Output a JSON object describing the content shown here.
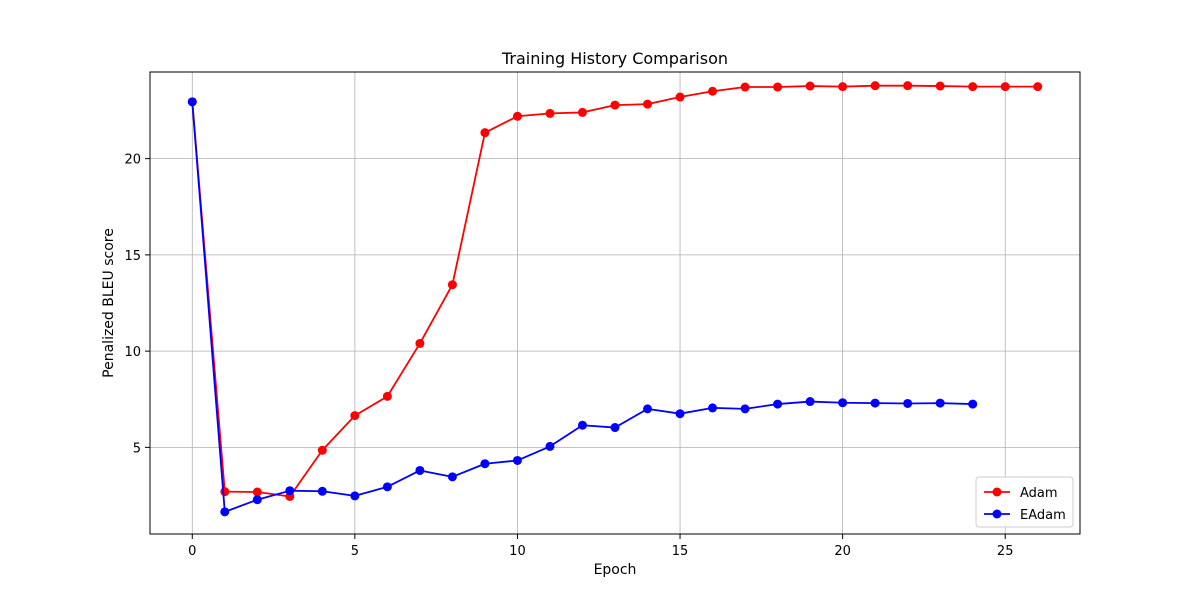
{
  "chart_data": {
    "type": "line",
    "title": "Training History Comparison",
    "xlabel": "Epoch",
    "ylabel": "Penalized BLEU score",
    "xlim": [
      -1.3,
      27.3
    ],
    "ylim": [
      0.5,
      24.5
    ],
    "xticks": [
      0,
      5,
      10,
      15,
      20,
      25
    ],
    "yticks": [
      5,
      10,
      15,
      20
    ],
    "grid": true,
    "legend_position": "bottom-right",
    "series": [
      {
        "name": "Adam",
        "color": "#ff0000",
        "x": [
          0,
          1,
          2,
          3,
          4,
          5,
          6,
          7,
          8,
          9,
          10,
          11,
          12,
          13,
          14,
          15,
          16,
          17,
          18,
          19,
          20,
          21,
          22,
          23,
          24,
          25,
          26
        ],
        "y": [
          22.95,
          2.7,
          2.68,
          2.45,
          4.85,
          6.65,
          7.65,
          10.4,
          13.45,
          21.35,
          22.2,
          22.35,
          22.4,
          22.78,
          22.83,
          23.2,
          23.5,
          23.72,
          23.72,
          23.77,
          23.74,
          23.79,
          23.79,
          23.77,
          23.74,
          23.74,
          23.74
        ]
      },
      {
        "name": "EAdam",
        "color": "#0000ff",
        "x": [
          0,
          1,
          2,
          3,
          4,
          5,
          6,
          7,
          8,
          9,
          10,
          11,
          12,
          13,
          14,
          15,
          16,
          17,
          18,
          19,
          20,
          21,
          22,
          23,
          24
        ],
        "y": [
          22.95,
          1.65,
          2.28,
          2.75,
          2.72,
          2.48,
          2.95,
          3.8,
          3.47,
          4.15,
          4.32,
          5.05,
          6.15,
          6.03,
          7.0,
          6.75,
          7.05,
          7.0,
          7.25,
          7.38,
          7.32,
          7.3,
          7.28,
          7.3,
          7.25
        ]
      }
    ]
  }
}
